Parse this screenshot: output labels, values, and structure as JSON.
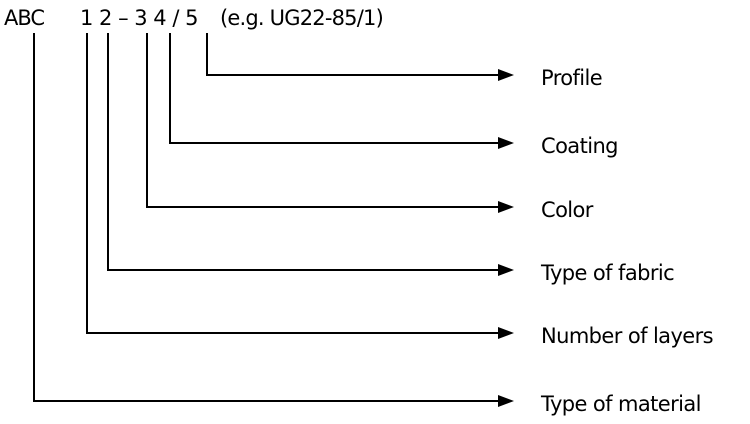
{
  "code": {
    "prefix": "ABC",
    "pattern": "1 2 – 3 4 / 5",
    "example": "(e.g. UG22-85/1)"
  },
  "labels": [
    {
      "id": "5",
      "text": "Profile"
    },
    {
      "id": "4",
      "text": "Coating"
    },
    {
      "id": "3",
      "text": "Color"
    },
    {
      "id": "2",
      "text": "Type of fabric"
    },
    {
      "id": "1",
      "text": "Number of layers"
    },
    {
      "id": "ABC",
      "text": "Type of material"
    }
  ],
  "line_color": "#000000"
}
